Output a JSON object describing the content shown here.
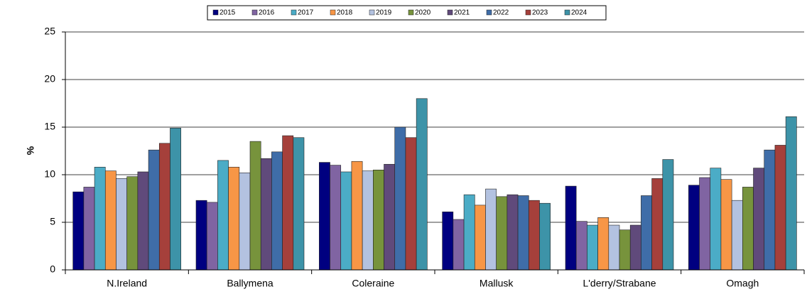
{
  "chart_data": {
    "type": "bar",
    "y_label": "%",
    "categories": [
      "N.Ireland",
      "Ballymena",
      "Coleraine",
      "Mallusk",
      "L'derry/Strabane",
      "Omagh"
    ],
    "series": [
      {
        "name": "2015",
        "color": "#000080",
        "values": [
          8.2,
          7.3,
          11.3,
          6.1,
          8.8,
          8.9
        ]
      },
      {
        "name": "2016",
        "color": "#8064a2",
        "values": [
          8.7,
          7.1,
          11.0,
          5.3,
          5.1,
          9.7
        ]
      },
      {
        "name": "2017",
        "color": "#4bacc6",
        "values": [
          10.8,
          11.5,
          10.3,
          7.9,
          4.7,
          10.7
        ]
      },
      {
        "name": "2018",
        "color": "#f79646",
        "values": [
          10.4,
          10.8,
          11.4,
          6.8,
          5.5,
          9.5
        ]
      },
      {
        "name": "2019",
        "color": "#b3c2e0",
        "values": [
          9.6,
          10.2,
          10.4,
          8.5,
          4.7,
          7.3
        ]
      },
      {
        "name": "2020",
        "color": "#77933c",
        "values": [
          9.8,
          13.5,
          10.5,
          7.7,
          4.2,
          8.7
        ]
      },
      {
        "name": "2021",
        "color": "#604a7b",
        "values": [
          10.3,
          11.7,
          11.1,
          7.9,
          4.7,
          10.7
        ]
      },
      {
        "name": "2022",
        "color": "#3f6da8",
        "values": [
          12.6,
          12.4,
          15.0,
          7.8,
          7.8,
          12.6
        ]
      },
      {
        "name": "2023",
        "color": "#a5403b",
        "values": [
          13.3,
          14.1,
          13.9,
          7.3,
          9.6,
          13.1
        ]
      },
      {
        "name": "2024",
        "color": "#3d93a8",
        "values": [
          14.9,
          13.9,
          18.0,
          7.0,
          11.6,
          16.1
        ]
      }
    ],
    "ylim": [
      0,
      25
    ],
    "yticks": [
      0,
      5,
      10,
      15,
      20,
      25
    ],
    "grid": true,
    "legend": "top"
  }
}
